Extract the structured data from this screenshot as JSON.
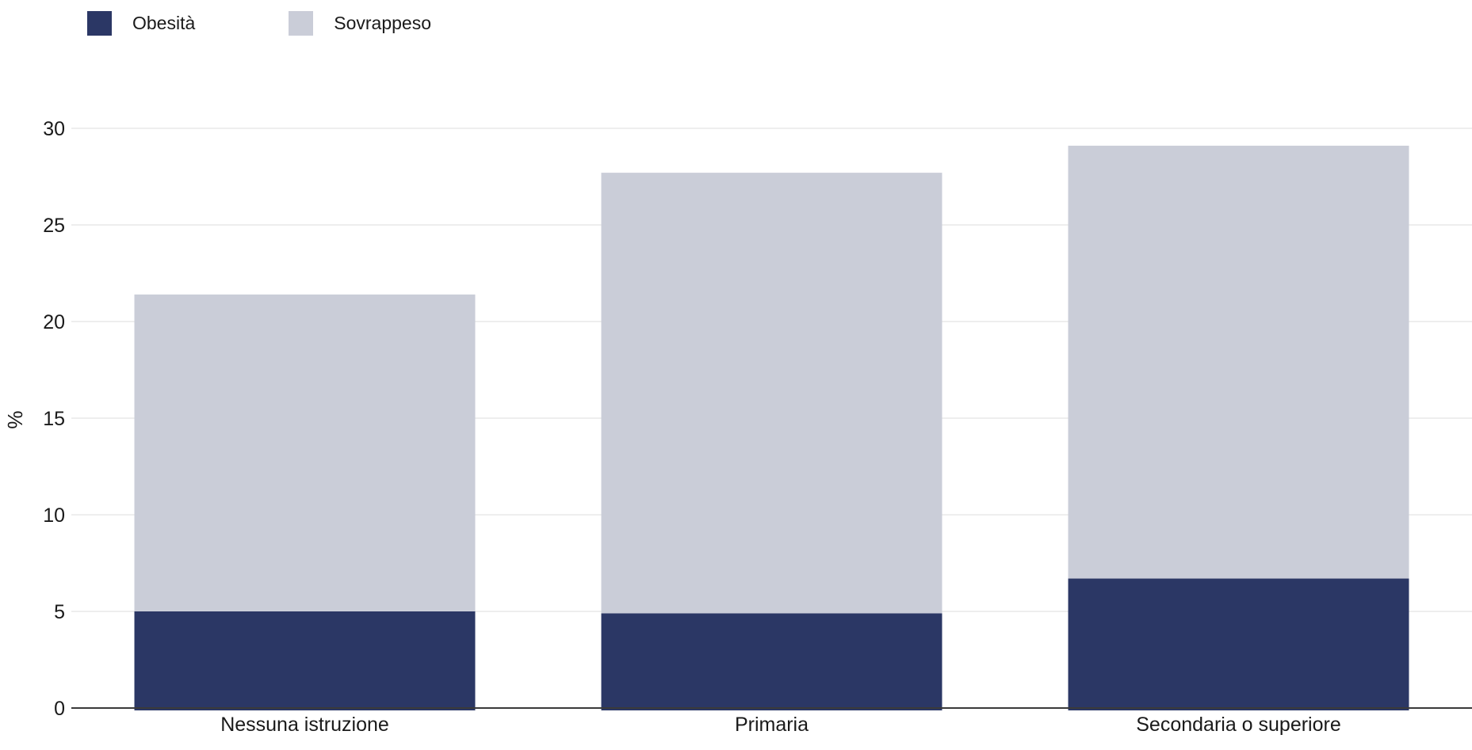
{
  "legend": [
    {
      "label": "Obesità",
      "color": "#2b3765"
    },
    {
      "label": "Sovrappeso",
      "color": "#cacdd8"
    }
  ],
  "chart_data": {
    "type": "bar",
    "stacked": true,
    "categories": [
      "Nessuna istruzione",
      "Primaria",
      "Secondaria o superiore"
    ],
    "series": [
      {
        "name": "Obesità",
        "color": "#2b3765",
        "values": [
          5.0,
          4.9,
          6.7
        ]
      },
      {
        "name": "Sovrappeso",
        "color": "#cacdd8",
        "values": [
          16.4,
          22.8,
          22.4
        ]
      }
    ],
    "ylabel": "%",
    "xlabel": "",
    "ylim": [
      0,
      30
    ],
    "yticks": [
      0,
      5,
      10,
      15,
      20,
      25,
      30
    ],
    "grid": true,
    "legend_position": "top-left"
  }
}
